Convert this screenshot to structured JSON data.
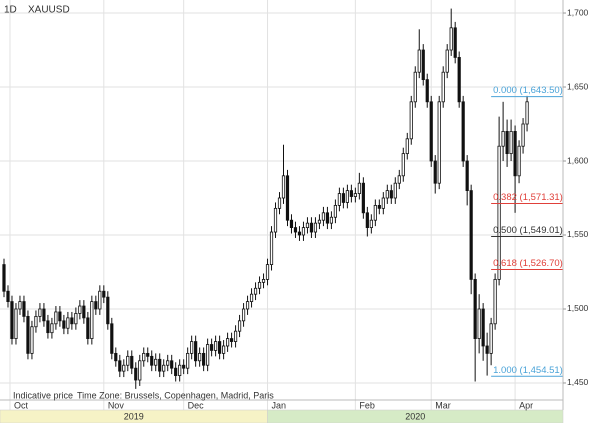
{
  "chart_data": {
    "type": "candlestick",
    "interval": "1D",
    "symbol": "XAUUSD",
    "note": "Indicative price",
    "timezone": "Time Zone: Brussels, Copenhagen, Madrid, Paris",
    "up_color": "#ffffff",
    "down_color": "#111111",
    "edge_color": "#111111",
    "xlim": [
      -1,
      140
    ],
    "xticks": [
      {
        "value": 1.5,
        "label": "Oct"
      },
      {
        "value": 25,
        "label": "Nov"
      },
      {
        "value": 45,
        "label": "Dec"
      },
      {
        "value": 66,
        "label": "Jan"
      },
      {
        "value": 88,
        "label": "Feb"
      },
      {
        "value": 107,
        "label": "Mar"
      },
      {
        "value": 128,
        "label": "Apr"
      }
    ],
    "years": [
      {
        "label": "2019",
        "start": -1,
        "end": 66,
        "color": "#f6f3c6"
      },
      {
        "label": "2020",
        "start": 66,
        "end": 140,
        "color": "#d6ebc6"
      }
    ],
    "ylim": [
      1438.5,
      1708.8
    ],
    "yticks": [
      {
        "value": 1450,
        "label": "1,450"
      },
      {
        "value": 1500,
        "label": "1,500"
      },
      {
        "value": 1550,
        "label": "1,550"
      },
      {
        "value": 1600,
        "label": "1,600"
      },
      {
        "value": 1650,
        "label": "1,650"
      },
      {
        "value": 1700,
        "label": "1,700"
      }
    ],
    "grid": true,
    "fib_start": 122,
    "fibonacci": [
      {
        "label": "0.000 (1,643.50)",
        "value": 1643.5,
        "color": "#4aa3d8"
      },
      {
        "label": "0.382 (1,571.31)",
        "value": 1571.31,
        "color": "#e0403a"
      },
      {
        "label": "0.500 (1,549.01)",
        "value": 1549.01,
        "color": "#333333"
      },
      {
        "label": "0.618 (1,526.70)",
        "value": 1526.7,
        "color": "#e0403a"
      },
      {
        "label": "1.000 (1,454.51)",
        "value": 1454.51,
        "color": "#4aa3d8"
      }
    ],
    "ohlc": [
      [
        1530,
        1534,
        1508,
        1512
      ],
      [
        1512,
        1516,
        1501,
        1505
      ],
      [
        1505,
        1509,
        1476,
        1480
      ],
      [
        1480,
        1504,
        1476,
        1500
      ],
      [
        1500,
        1509,
        1496,
        1505
      ],
      [
        1505,
        1509,
        1491,
        1495
      ],
      [
        1495,
        1499,
        1466,
        1470
      ],
      [
        1470,
        1492,
        1466,
        1488
      ],
      [
        1488,
        1499,
        1484,
        1495
      ],
      [
        1495,
        1504,
        1491,
        1500
      ],
      [
        1500,
        1504,
        1488,
        1492
      ],
      [
        1492,
        1496,
        1480,
        1484
      ],
      [
        1484,
        1494,
        1480,
        1490
      ],
      [
        1490,
        1502,
        1486,
        1498
      ],
      [
        1498,
        1502,
        1488,
        1492
      ],
      [
        1492,
        1496,
        1483,
        1487
      ],
      [
        1487,
        1498,
        1483,
        1494
      ],
      [
        1494,
        1498,
        1486,
        1490
      ],
      [
        1490,
        1501,
        1486,
        1497
      ],
      [
        1497,
        1506,
        1493,
        1502
      ],
      [
        1502,
        1506,
        1490,
        1494
      ],
      [
        1494,
        1498,
        1476,
        1480
      ],
      [
        1480,
        1509,
        1476,
        1505
      ],
      [
        1505,
        1509,
        1496,
        1500
      ],
      [
        1500,
        1516,
        1496,
        1512
      ],
      [
        1512,
        1516,
        1504,
        1508
      ],
      [
        1508,
        1512,
        1486,
        1490
      ],
      [
        1490,
        1494,
        1466,
        1470
      ],
      [
        1470,
        1474,
        1461,
        1465
      ],
      [
        1465,
        1469,
        1454,
        1458
      ],
      [
        1458,
        1466,
        1454,
        1462
      ],
      [
        1462,
        1472,
        1458,
        1468
      ],
      [
        1468,
        1472,
        1456,
        1460
      ],
      [
        1460,
        1464,
        1446,
        1452
      ],
      [
        1452,
        1469,
        1448,
        1465
      ],
      [
        1465,
        1474,
        1461,
        1470
      ],
      [
        1470,
        1474,
        1464,
        1468
      ],
      [
        1468,
        1472,
        1458,
        1462
      ],
      [
        1462,
        1470,
        1458,
        1466
      ],
      [
        1466,
        1470,
        1454,
        1458
      ],
      [
        1458,
        1466,
        1454,
        1462
      ],
      [
        1462,
        1469,
        1458,
        1465
      ],
      [
        1465,
        1469,
        1456,
        1460
      ],
      [
        1460,
        1464,
        1451,
        1455
      ],
      [
        1455,
        1466,
        1451,
        1462
      ],
      [
        1462,
        1466,
        1456,
        1460
      ],
      [
        1460,
        1474,
        1456,
        1470
      ],
      [
        1470,
        1482,
        1466,
        1478
      ],
      [
        1478,
        1482,
        1461,
        1465
      ],
      [
        1465,
        1474,
        1461,
        1470
      ],
      [
        1470,
        1474,
        1458,
        1462
      ],
      [
        1462,
        1480,
        1458,
        1476
      ],
      [
        1476,
        1480,
        1468,
        1472
      ],
      [
        1472,
        1482,
        1468,
        1478
      ],
      [
        1478,
        1482,
        1466,
        1470
      ],
      [
        1470,
        1479,
        1466,
        1475
      ],
      [
        1475,
        1484,
        1471,
        1480
      ],
      [
        1480,
        1484,
        1474,
        1478
      ],
      [
        1478,
        1489,
        1474,
        1485
      ],
      [
        1485,
        1496,
        1481,
        1492
      ],
      [
        1492,
        1504,
        1488,
        1500
      ],
      [
        1500,
        1509,
        1496,
        1505
      ],
      [
        1505,
        1514,
        1501,
        1510
      ],
      [
        1510,
        1518,
        1506,
        1514
      ],
      [
        1514,
        1522,
        1510,
        1518
      ],
      [
        1518,
        1524,
        1514,
        1520
      ],
      [
        1520,
        1534,
        1516,
        1530
      ],
      [
        1530,
        1556,
        1526,
        1552
      ],
      [
        1552,
        1572,
        1548,
        1568
      ],
      [
        1568,
        1579,
        1564,
        1575
      ],
      [
        1575,
        1611,
        1571,
        1590
      ],
      [
        1590,
        1594,
        1556,
        1560
      ],
      [
        1560,
        1564,
        1551,
        1555
      ],
      [
        1555,
        1559,
        1548,
        1552
      ],
      [
        1552,
        1556,
        1546,
        1550
      ],
      [
        1550,
        1559,
        1546,
        1555
      ],
      [
        1555,
        1562,
        1551,
        1558
      ],
      [
        1558,
        1562,
        1548,
        1552
      ],
      [
        1552,
        1562,
        1548,
        1558
      ],
      [
        1558,
        1564,
        1554,
        1560
      ],
      [
        1560,
        1569,
        1556,
        1565
      ],
      [
        1565,
        1569,
        1554,
        1558
      ],
      [
        1558,
        1566,
        1554,
        1562
      ],
      [
        1562,
        1574,
        1558,
        1570
      ],
      [
        1570,
        1582,
        1566,
        1578
      ],
      [
        1578,
        1582,
        1568,
        1572
      ],
      [
        1572,
        1584,
        1568,
        1580
      ],
      [
        1580,
        1584,
        1572,
        1576
      ],
      [
        1576,
        1582,
        1572,
        1578
      ],
      [
        1578,
        1592,
        1574,
        1585
      ],
      [
        1585,
        1589,
        1561,
        1565
      ],
      [
        1565,
        1569,
        1549,
        1555
      ],
      [
        1555,
        1564,
        1551,
        1560
      ],
      [
        1560,
        1574,
        1556,
        1570
      ],
      [
        1570,
        1574,
        1564,
        1568
      ],
      [
        1568,
        1579,
        1564,
        1575
      ],
      [
        1575,
        1584,
        1571,
        1580
      ],
      [
        1580,
        1584,
        1571,
        1575
      ],
      [
        1575,
        1589,
        1571,
        1585
      ],
      [
        1585,
        1594,
        1581,
        1590
      ],
      [
        1590,
        1609,
        1586,
        1605
      ],
      [
        1605,
        1619,
        1601,
        1615
      ],
      [
        1615,
        1644,
        1611,
        1640
      ],
      [
        1640,
        1664,
        1636,
        1660
      ],
      [
        1660,
        1689,
        1656,
        1675
      ],
      [
        1675,
        1679,
        1651,
        1655
      ],
      [
        1655,
        1659,
        1636,
        1640
      ],
      [
        1640,
        1644,
        1596,
        1600
      ],
      [
        1600,
        1604,
        1578,
        1585
      ],
      [
        1585,
        1644,
        1581,
        1640
      ],
      [
        1640,
        1664,
        1636,
        1660
      ],
      [
        1660,
        1679,
        1656,
        1675
      ],
      [
        1675,
        1703,
        1671,
        1690
      ],
      [
        1690,
        1694,
        1666,
        1670
      ],
      [
        1670,
        1674,
        1636,
        1640
      ],
      [
        1640,
        1644,
        1596,
        1600
      ],
      [
        1600,
        1604,
        1570,
        1580
      ],
      [
        1580,
        1584,
        1510,
        1520
      ],
      [
        1520,
        1524,
        1451,
        1480
      ],
      [
        1480,
        1510,
        1470,
        1500
      ],
      [
        1500,
        1504,
        1465,
        1475
      ],
      [
        1475,
        1484,
        1455,
        1470
      ],
      [
        1470,
        1494,
        1462,
        1490
      ],
      [
        1490,
        1524,
        1486,
        1520
      ],
      [
        1520,
        1630,
        1516,
        1610
      ],
      [
        1610,
        1640,
        1600,
        1620
      ],
      [
        1620,
        1628,
        1596,
        1605
      ],
      [
        1605,
        1628,
        1600,
        1620
      ],
      [
        1620,
        1624,
        1565,
        1590
      ],
      [
        1590,
        1614,
        1585,
        1610
      ],
      [
        1610,
        1629,
        1605,
        1625
      ],
      [
        1625,
        1644,
        1620,
        1640
      ]
    ]
  }
}
